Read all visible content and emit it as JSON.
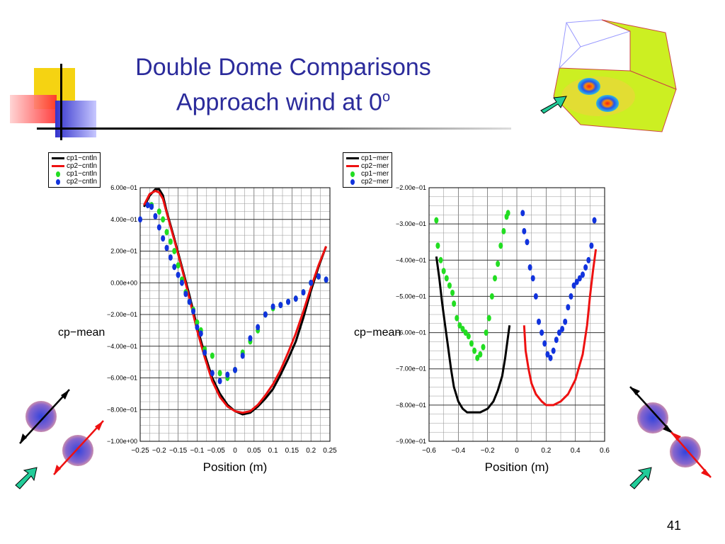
{
  "slide": {
    "title_line1": "Double Dome Comparisons",
    "title_line2": "Approach wind at 0",
    "title_sup": "o",
    "page_number": "41"
  },
  "colors": {
    "title": "#2b2b9b",
    "cp1_line": "#000000",
    "cp2_line": "#ee1111",
    "cp1_dots": "#22dd22",
    "cp2_dots": "#1133dd",
    "arrow_teal": "#22cc99"
  },
  "chart_data": [
    {
      "type": "scatter",
      "xlabel": "Position (m)",
      "ylabel": "cp−mean",
      "xlim": [
        -0.25,
        0.25
      ],
      "ylim": [
        -1.0,
        0.6
      ],
      "xticks": [
        -0.25,
        -0.2,
        -0.15,
        -0.1,
        -0.05,
        0,
        0.05,
        0.1,
        0.15,
        0.2,
        0.25
      ],
      "xtick_labels": [
        "−0.25",
        "−0.2",
        "−0.15",
        "−0.1",
        "−0.05",
        "0",
        "0.05",
        "0.1",
        "0.15",
        "0.2",
        "0.25"
      ],
      "yticks": [
        0.6,
        0.4,
        0.2,
        0.0,
        -0.2,
        -0.4,
        -0.6,
        -0.8,
        -1.0
      ],
      "ytick_labels": [
        "6.00e−01",
        "4.00e−01",
        "2.00e−01",
        "0.00e+00",
        "−2.00e−01",
        "−4.00e−01",
        "−6.00e−01",
        "−8.00e−01",
        "−1.00e+00"
      ],
      "grid": true,
      "legend_position": "top-left",
      "series": [
        {
          "name": "cp1−cntln",
          "style": "line",
          "color": "#000000",
          "x": [
            -0.24,
            -0.225,
            -0.21,
            -0.2,
            -0.19,
            -0.18,
            -0.16,
            -0.14,
            -0.12,
            -0.1,
            -0.08,
            -0.06,
            -0.04,
            -0.02,
            0,
            0.02,
            0.04,
            0.06,
            0.08,
            0.1,
            0.12,
            0.14,
            0.16,
            0.18,
            0.2,
            0.22,
            0.24
          ],
          "y": [
            0.48,
            0.55,
            0.59,
            0.59,
            0.55,
            0.45,
            0.28,
            0.1,
            -0.08,
            -0.28,
            -0.45,
            -0.6,
            -0.7,
            -0.77,
            -0.81,
            -0.83,
            -0.82,
            -0.78,
            -0.73,
            -0.67,
            -0.58,
            -0.48,
            -0.37,
            -0.22,
            -0.05,
            0.1,
            0.23
          ]
        },
        {
          "name": "cp2−cntln",
          "style": "line",
          "color": "#ee1111",
          "x": [
            -0.24,
            -0.225,
            -0.21,
            -0.2,
            -0.19,
            -0.18,
            -0.16,
            -0.14,
            -0.12,
            -0.1,
            -0.08,
            -0.06,
            -0.04,
            -0.02,
            0,
            0.02,
            0.04,
            0.06,
            0.08,
            0.1,
            0.12,
            0.14,
            0.16,
            0.18,
            0.2,
            0.22,
            0.24
          ],
          "y": [
            0.49,
            0.56,
            0.58,
            0.57,
            0.53,
            0.44,
            0.27,
            0.09,
            -0.1,
            -0.3,
            -0.47,
            -0.62,
            -0.72,
            -0.78,
            -0.81,
            -0.82,
            -0.81,
            -0.77,
            -0.71,
            -0.64,
            -0.55,
            -0.44,
            -0.32,
            -0.18,
            -0.03,
            0.11,
            0.23
          ]
        },
        {
          "name": "cp1−cntln",
          "style": "dots",
          "color": "#22dd22",
          "x": [
            -0.22,
            -0.2,
            -0.19,
            -0.18,
            -0.17,
            -0.16,
            -0.15,
            -0.14,
            -0.13,
            -0.12,
            -0.11,
            -0.1,
            -0.09,
            -0.08,
            -0.06,
            -0.04,
            -0.02,
            0,
            0.02,
            0.04,
            0.06,
            0.08,
            0.1,
            0.12,
            0.14,
            0.16,
            0.18,
            0.2,
            0.22,
            0.24
          ],
          "y": [
            0.49,
            0.45,
            0.4,
            0.32,
            0.26,
            0.2,
            0.11,
            0.02,
            -0.06,
            -0.12,
            -0.17,
            -0.25,
            -0.3,
            -0.42,
            -0.46,
            -0.57,
            -0.6,
            -0.55,
            -0.44,
            -0.37,
            -0.3,
            -0.2,
            -0.16,
            -0.14,
            -0.12,
            -0.1,
            -0.06,
            0.0,
            0.04,
            0.02
          ]
        },
        {
          "name": "cp2−cntln",
          "style": "dots",
          "color": "#1133dd",
          "x": [
            -0.25,
            -0.23,
            -0.22,
            -0.21,
            -0.2,
            -0.19,
            -0.18,
            -0.17,
            -0.16,
            -0.15,
            -0.14,
            -0.13,
            -0.12,
            -0.11,
            -0.1,
            -0.09,
            -0.08,
            -0.06,
            -0.04,
            -0.02,
            0,
            0.02,
            0.04,
            0.06,
            0.08,
            0.1,
            0.12,
            0.14,
            0.16,
            0.18,
            0.2,
            0.22,
            0.24
          ],
          "y": [
            0.4,
            0.49,
            0.48,
            0.42,
            0.35,
            0.28,
            0.22,
            0.16,
            0.1,
            0.05,
            0.0,
            -0.07,
            -0.12,
            -0.18,
            -0.28,
            -0.32,
            -0.44,
            -0.57,
            -0.62,
            -0.58,
            -0.55,
            -0.46,
            -0.35,
            -0.28,
            -0.2,
            -0.15,
            -0.14,
            -0.12,
            -0.1,
            -0.06,
            0.0,
            0.04,
            0.02
          ]
        }
      ]
    },
    {
      "type": "scatter",
      "xlabel": "Position (m)",
      "ylabel": "cp−mean",
      "xlim": [
        -0.6,
        0.6
      ],
      "ylim": [
        -0.9,
        -0.2
      ],
      "xticks": [
        -0.6,
        -0.4,
        -0.2,
        0,
        0.2,
        0.4,
        0.6
      ],
      "xtick_labels": [
        "−0.6",
        "−0.4",
        "−0.2",
        "0",
        "0.2",
        "0.4",
        "0.6"
      ],
      "yticks": [
        -0.2,
        -0.3,
        -0.4,
        -0.5,
        -0.6,
        -0.7,
        -0.8,
        -0.9
      ],
      "ytick_labels": [
        "−2.00e−01",
        "−3.00e−01",
        "−4.00e−01",
        "−5.00e−01",
        "−6.00e−01",
        "−7.00e−01",
        "−8.00e−01",
        "−9.00e−01"
      ],
      "grid": true,
      "legend_position": "top-left",
      "series": [
        {
          "name": "cp1−mer",
          "style": "line",
          "color": "#000000",
          "x": [
            -0.55,
            -0.53,
            -0.51,
            -0.49,
            -0.47,
            -0.45,
            -0.43,
            -0.4,
            -0.37,
            -0.34,
            -0.3,
            -0.25,
            -0.2,
            -0.16,
            -0.13,
            -0.1,
            -0.08,
            -0.06,
            -0.05
          ],
          "y": [
            -0.39,
            -0.45,
            -0.52,
            -0.58,
            -0.64,
            -0.7,
            -0.75,
            -0.79,
            -0.81,
            -0.82,
            -0.82,
            -0.82,
            -0.81,
            -0.79,
            -0.76,
            -0.72,
            -0.67,
            -0.61,
            -0.58
          ]
        },
        {
          "name": "cp2−mer",
          "style": "line",
          "color": "#ee1111",
          "x": [
            0.05,
            0.06,
            0.08,
            0.1,
            0.13,
            0.17,
            0.2,
            0.25,
            0.3,
            0.35,
            0.4,
            0.45,
            0.48,
            0.5,
            0.52,
            0.54
          ],
          "y": [
            -0.58,
            -0.65,
            -0.7,
            -0.74,
            -0.77,
            -0.79,
            -0.8,
            -0.8,
            -0.79,
            -0.77,
            -0.73,
            -0.66,
            -0.58,
            -0.5,
            -0.43,
            -0.37
          ]
        },
        {
          "name": "cp1−mer",
          "style": "dots",
          "color": "#22dd22",
          "x": [
            -0.55,
            -0.54,
            -0.52,
            -0.5,
            -0.48,
            -0.46,
            -0.44,
            -0.43,
            -0.41,
            -0.39,
            -0.37,
            -0.35,
            -0.33,
            -0.31,
            -0.29,
            -0.27,
            -0.25,
            -0.23,
            -0.21,
            -0.19,
            -0.17,
            -0.15,
            -0.13,
            -0.11,
            -0.09,
            -0.07,
            -0.06
          ],
          "y": [
            -0.29,
            -0.36,
            -0.4,
            -0.43,
            -0.45,
            -0.47,
            -0.49,
            -0.52,
            -0.56,
            -0.58,
            -0.59,
            -0.6,
            -0.61,
            -0.63,
            -0.65,
            -0.67,
            -0.66,
            -0.64,
            -0.6,
            -0.56,
            -0.5,
            -0.45,
            -0.41,
            -0.36,
            -0.32,
            -0.28,
            -0.27
          ]
        },
        {
          "name": "cp2−mer",
          "style": "dots",
          "color": "#1133dd",
          "x": [
            0.04,
            0.05,
            0.07,
            0.09,
            0.11,
            0.13,
            0.15,
            0.17,
            0.19,
            0.21,
            0.23,
            0.25,
            0.27,
            0.29,
            0.31,
            0.33,
            0.35,
            0.37,
            0.39,
            0.41,
            0.43,
            0.45,
            0.47,
            0.49,
            0.51,
            0.53
          ],
          "y": [
            -0.27,
            -0.32,
            -0.35,
            -0.42,
            -0.45,
            -0.5,
            -0.57,
            -0.6,
            -0.63,
            -0.66,
            -0.67,
            -0.65,
            -0.62,
            -0.6,
            -0.59,
            -0.57,
            -0.53,
            -0.5,
            -0.47,
            -0.46,
            -0.45,
            -0.44,
            -0.42,
            -0.4,
            -0.36,
            -0.29
          ]
        }
      ]
    }
  ]
}
